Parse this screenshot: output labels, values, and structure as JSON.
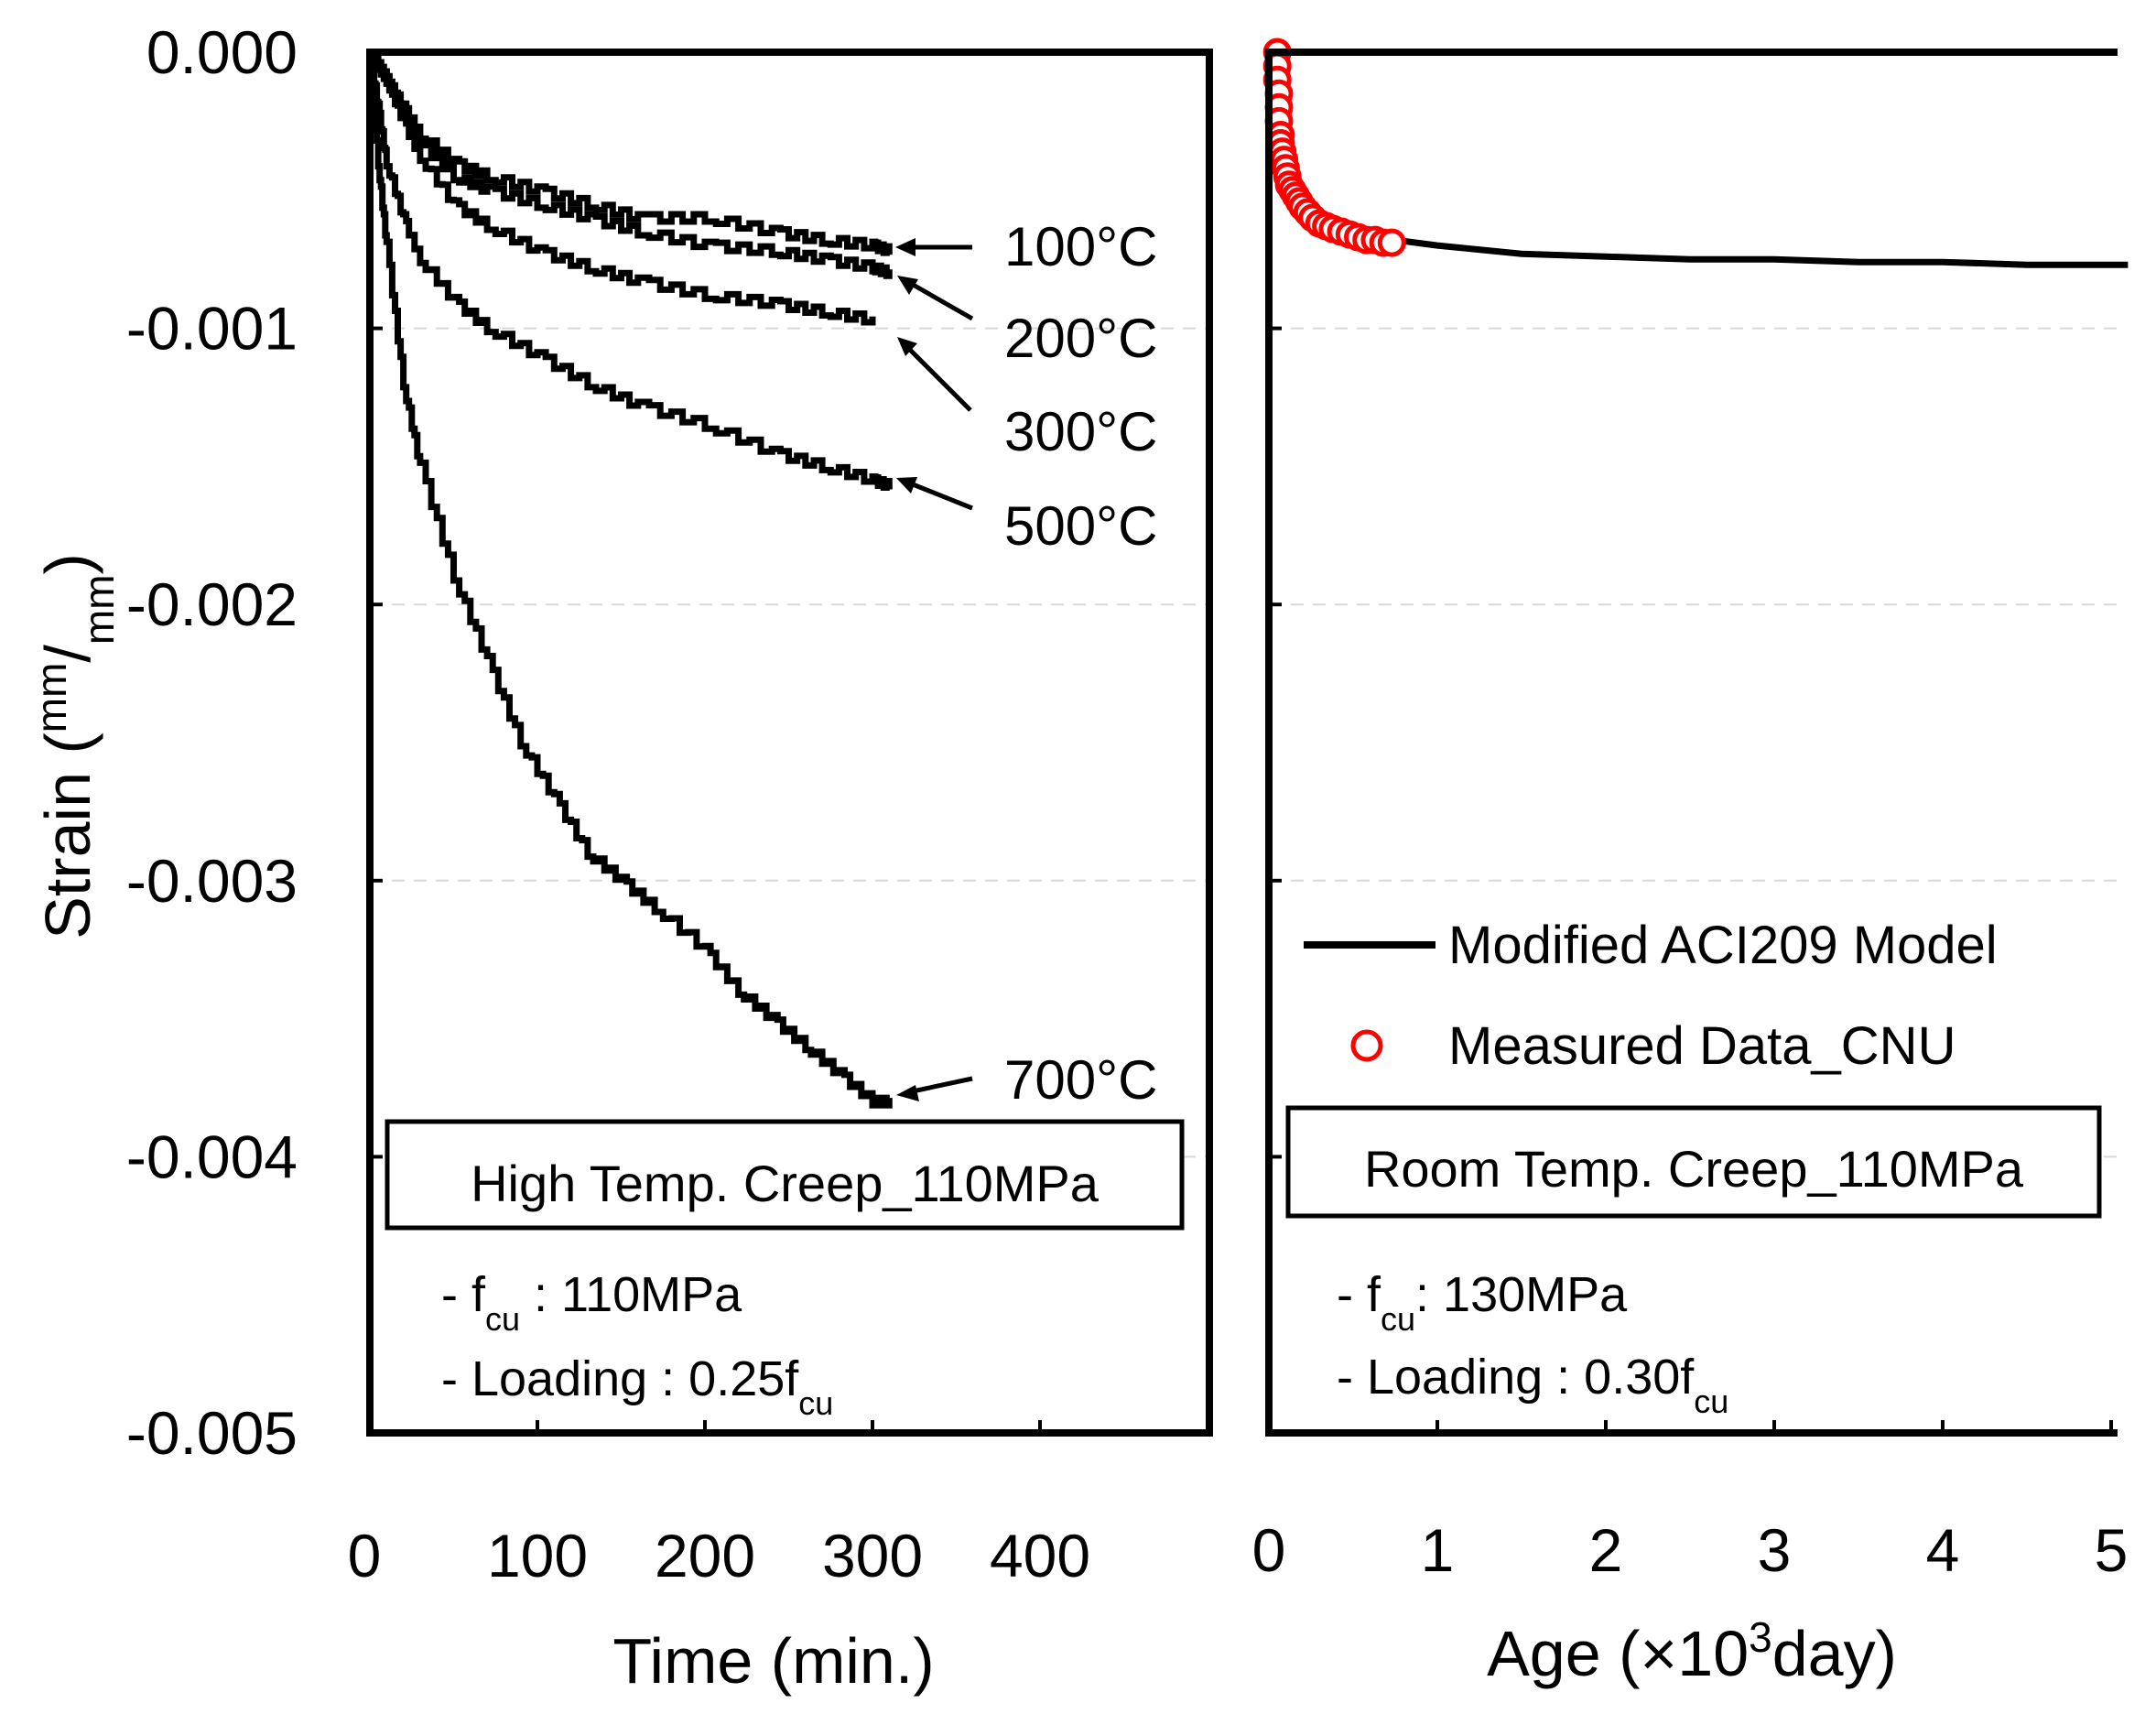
{
  "chart_data": [
    {
      "type": "line",
      "panel": "left",
      "title": "High Temp. Creep_110MPa",
      "xlabel": "Time (min.)",
      "ylabel": "Strain (mm/mm)",
      "ylabel_parts": {
        "main": "Strain (",
        "sup": "mm",
        "slash": "/",
        "sub": "mm",
        "close": ")"
      },
      "xlim": [
        0,
        500
      ],
      "ylim": [
        -0.005,
        0.0
      ],
      "xticks": [
        0,
        100,
        200,
        300,
        400
      ],
      "xtick_labels": [
        "0",
        "100",
        "200",
        "300",
        "400"
      ],
      "yticks": [
        0.0,
        -0.001,
        -0.002,
        -0.003,
        -0.004,
        -0.005
      ],
      "ytick_labels": [
        "0.000",
        "-0.001",
        "-0.002",
        "-0.003",
        "-0.004",
        "-0.005"
      ],
      "grid": "horizontal dashed",
      "series": [
        {
          "name": "100°C",
          "x": [
            0,
            10,
            20,
            30,
            50,
            70,
            100,
            130,
            160,
            200,
            240,
            270,
            300,
            310
          ],
          "y": [
            0.0,
            -0.0001,
            -0.0002,
            -0.0003,
            -0.0004,
            -0.00045,
            -0.0005,
            -0.00055,
            -0.0006,
            -0.0006,
            -0.00065,
            -0.00068,
            -0.0007,
            -0.00072
          ]
        },
        {
          "name": "200°C",
          "x": [
            0,
            10,
            20,
            30,
            50,
            70,
            100,
            130,
            160,
            200,
            240,
            270,
            300,
            310
          ],
          "y": [
            0.0,
            -0.0001,
            -0.00022,
            -0.00033,
            -0.00045,
            -0.0005,
            -0.00055,
            -0.0006,
            -0.00065,
            -0.0007,
            -0.00072,
            -0.00075,
            -0.00078,
            -0.0008
          ]
        },
        {
          "name": "300°C",
          "x": [
            0,
            10,
            20,
            30,
            50,
            70,
            100,
            130,
            160,
            200,
            240,
            270,
            300
          ],
          "y": [
            0.0,
            -0.0001,
            -0.00025,
            -0.00038,
            -0.00055,
            -0.00063,
            -0.00072,
            -0.00078,
            -0.00083,
            -0.00088,
            -0.00091,
            -0.00094,
            -0.00097
          ]
        },
        {
          "name": "500°C",
          "x": [
            0,
            5,
            10,
            20,
            30,
            50,
            70,
            100,
            130,
            160,
            200,
            240,
            270,
            300,
            310
          ],
          "y": [
            0.0,
            -0.0002,
            -0.0004,
            -0.0006,
            -0.00075,
            -0.0009,
            -0.001,
            -0.0011,
            -0.0012,
            -0.00128,
            -0.00135,
            -0.00145,
            -0.0015,
            -0.00155,
            -0.00157
          ]
        },
        {
          "name": "700°C",
          "x": [
            0,
            5,
            10,
            20,
            30,
            50,
            70,
            90,
            110,
            130,
            150,
            170,
            200,
            220,
            240,
            260,
            280,
            300,
            310
          ],
          "y": [
            0.0,
            -0.0004,
            -0.0007,
            -0.0012,
            -0.0015,
            -0.0019,
            -0.0022,
            -0.0025,
            -0.0027,
            -0.0029,
            -0.003,
            -0.0031,
            -0.00325,
            -0.0034,
            -0.0035,
            -0.0036,
            -0.0037,
            -0.0038,
            -0.0038
          ]
        }
      ],
      "annotations": [
        "100°C",
        "200°C",
        "300°C",
        "500°C",
        "700°C"
      ],
      "notes": [
        {
          "prefix": "- f",
          "sub": "cu",
          "suffix": " : 110MPa"
        },
        {
          "prefix": "- Loading : 0.25f",
          "sub": "cu",
          "suffix": ""
        }
      ]
    },
    {
      "type": "line",
      "panel": "right",
      "title": "Room Temp. Creep_110MPa",
      "xlabel": "Age (×10³day)",
      "xlabel_parts": {
        "main": "Age (×10",
        "sup": "3",
        "rest": "day)"
      },
      "xlim": [
        0,
        5
      ],
      "ylim": [
        -0.005,
        0.0
      ],
      "xticks": [
        0,
        1,
        2,
        3,
        4,
        5
      ],
      "xtick_labels": [
        "0",
        "1",
        "2",
        "3",
        "4",
        "5"
      ],
      "grid": "horizontal dashed",
      "legend": {
        "placement": "center-right",
        "entries": [
          "Modified ACI209 Model",
          "Measured Data_CNU"
        ]
      },
      "series": [
        {
          "name": "Modified ACI209 Model",
          "x": [
            0.75,
            1.0,
            1.5,
            2.0,
            2.5,
            3.0,
            3.5,
            4.0,
            4.5,
            5.0,
            5.1
          ],
          "y": [
            -0.00068,
            -0.0007,
            -0.00073,
            -0.00074,
            -0.00075,
            -0.00075,
            -0.00076,
            -0.00076,
            -0.00077,
            -0.00077,
            -0.00077
          ]
        },
        {
          "name": "Measured Data_CNU",
          "style": "open-circle-red",
          "x": [
            0.05,
            0.05,
            0.05,
            0.06,
            0.06,
            0.06,
            0.07,
            0.07,
            0.08,
            0.09,
            0.1,
            0.11,
            0.12,
            0.14,
            0.16,
            0.18,
            0.2,
            0.23,
            0.26,
            0.3,
            0.34,
            0.38,
            0.43,
            0.48,
            0.53,
            0.58,
            0.63,
            0.68,
            0.73
          ],
          "y": [
            0.0,
            -5e-05,
            -0.0001,
            -0.00015,
            -0.0002,
            -0.00025,
            -0.0003,
            -0.00033,
            -0.00036,
            -0.00039,
            -0.00042,
            -0.00045,
            -0.00048,
            -0.0005,
            -0.00052,
            -0.00054,
            -0.00056,
            -0.00058,
            -0.0006,
            -0.00062,
            -0.00063,
            -0.00064,
            -0.00065,
            -0.00066,
            -0.00067,
            -0.00068,
            -0.00068,
            -0.00069,
            -0.00069
          ]
        }
      ],
      "notes": [
        {
          "prefix": "- f",
          "sub": "cu",
          "suffix": ": 130MPa"
        },
        {
          "prefix": "- Loading : 0.30f",
          "sub": "cu",
          "suffix": ""
        }
      ]
    }
  ]
}
